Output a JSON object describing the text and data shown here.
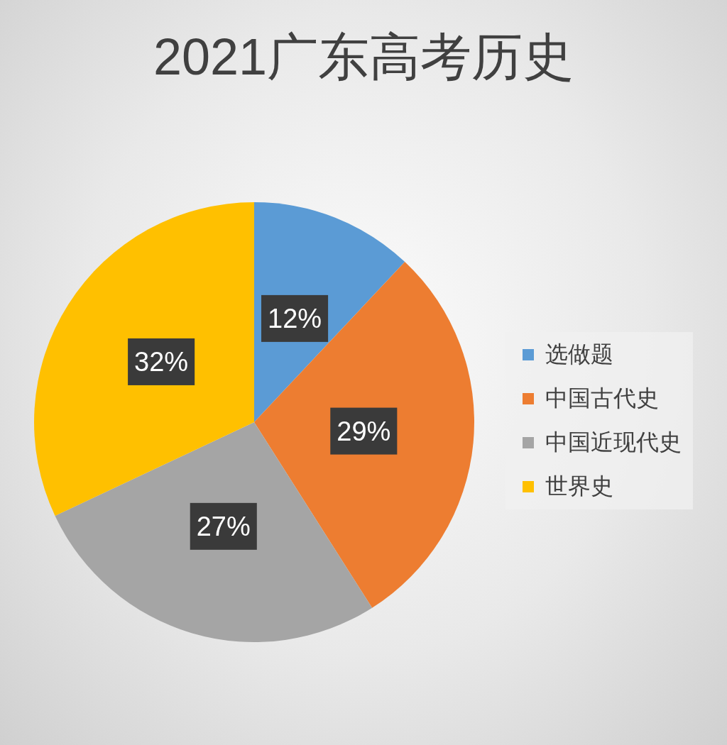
{
  "chart_data": {
    "type": "pie",
    "title": "2021广东高考历史",
    "categories": [
      "选做题",
      "中国古代史",
      "中国近现代史",
      "世界史"
    ],
    "values": [
      12,
      29,
      27,
      32
    ],
    "colors": [
      "#5b9bd5",
      "#ed7d31",
      "#a5a5a5",
      "#ffc000"
    ],
    "value_labels": [
      "12%",
      "29%",
      "27%",
      "32%"
    ],
    "legend": "right"
  }
}
